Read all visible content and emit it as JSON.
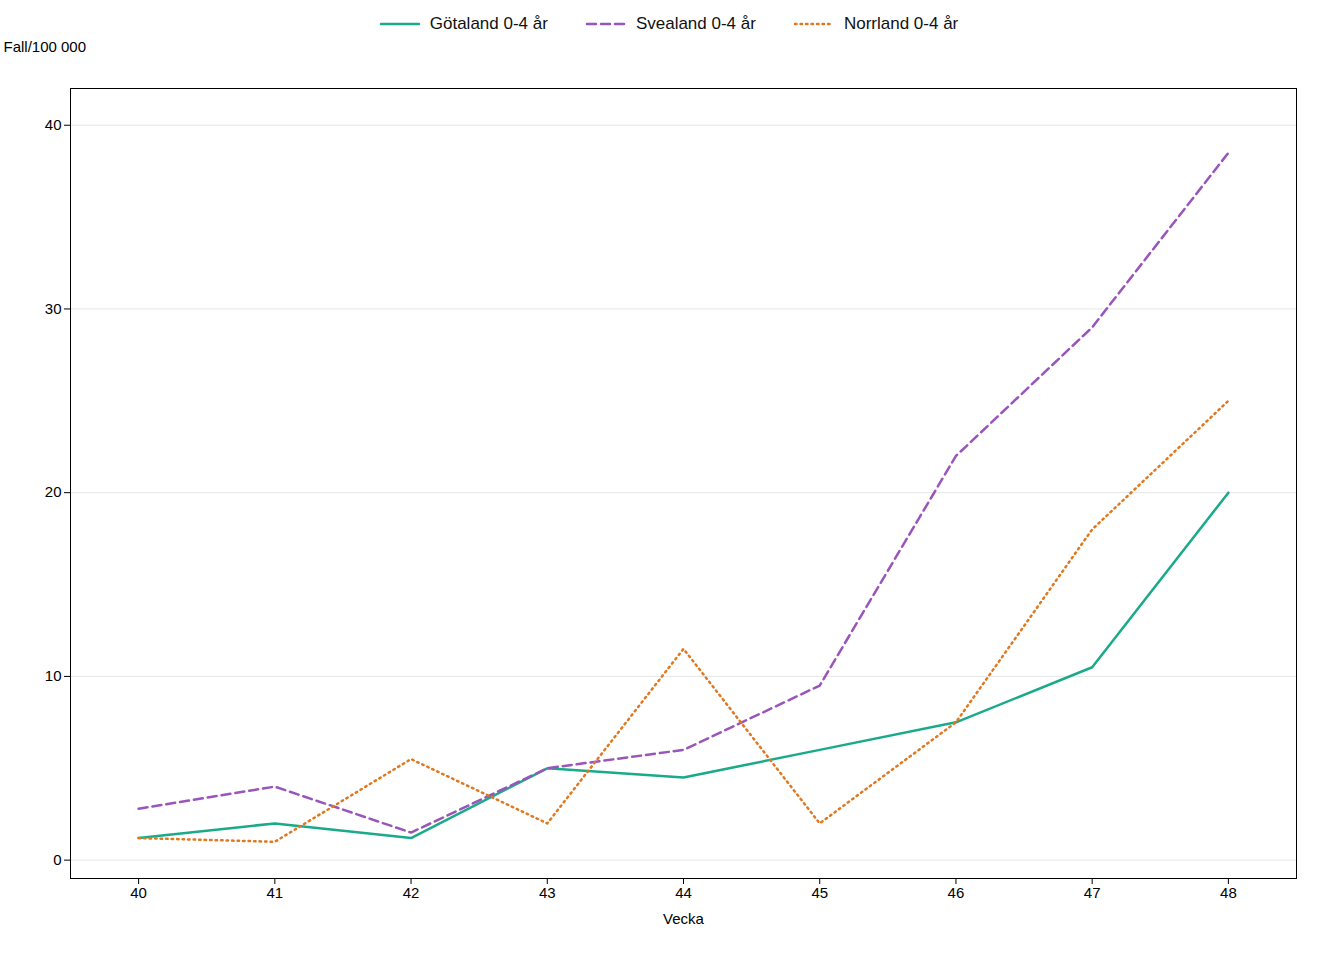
{
  "chart_data": {
    "type": "line",
    "xlabel": "Vecka",
    "ylabel": "Fall/100 000",
    "x": [
      40,
      41,
      42,
      43,
      44,
      45,
      46,
      47,
      48
    ],
    "series": [
      {
        "name": "Götaland 0-4 år",
        "color": "#1aaa8a",
        "line_style": "solid",
        "values": [
          1.2,
          2.0,
          1.2,
          5.0,
          4.5,
          6.0,
          7.5,
          10.5,
          20.0
        ]
      },
      {
        "name": "Svealand 0-4 år",
        "color": "#9955bb",
        "line_style": "dashed",
        "values": [
          2.8,
          4.0,
          1.5,
          5.0,
          6.0,
          9.5,
          22.0,
          29.0,
          38.5
        ]
      },
      {
        "name": "Norrland 0-4 år",
        "color": "#e07820",
        "line_style": "dotted",
        "values": [
          1.2,
          1.0,
          5.5,
          2.0,
          11.5,
          2.0,
          7.5,
          18.0,
          25.0
        ]
      }
    ],
    "xlim": [
      39.5,
      48.5
    ],
    "xticks": [
      40,
      41,
      42,
      43,
      44,
      45,
      46,
      47,
      48
    ],
    "ylim": [
      -1,
      42
    ],
    "yticks": [
      0,
      10,
      20,
      30,
      40
    ],
    "grid": "y",
    "legend": "top"
  }
}
